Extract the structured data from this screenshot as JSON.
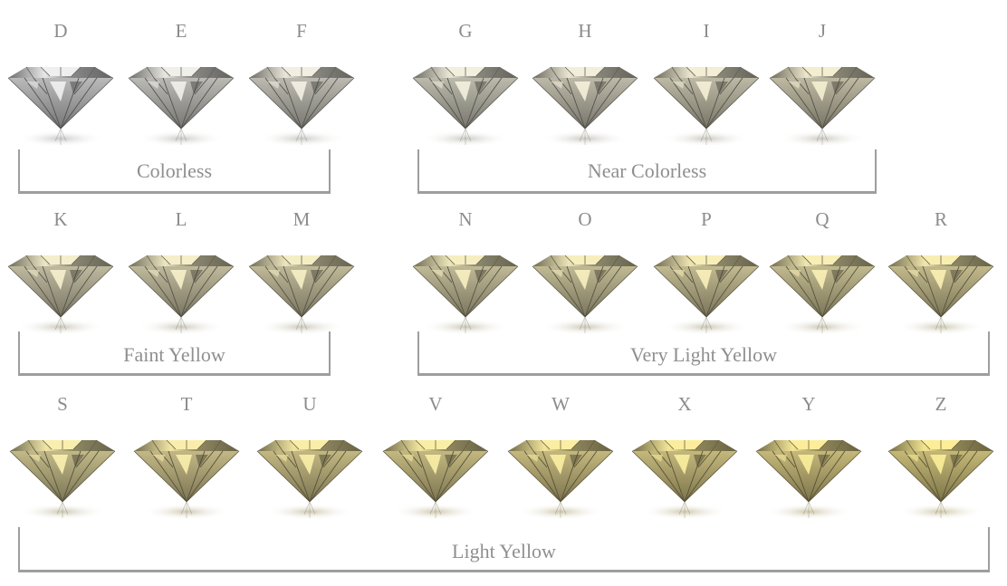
{
  "title": "",
  "rows": [
    {
      "groups": [
        {
          "label": "Colorless",
          "grades": [
            "D",
            "E",
            "F"
          ]
        },
        {
          "label": "Near Colorless",
          "grades": [
            "G",
            "H",
            "I",
            "J"
          ]
        }
      ]
    },
    {
      "groups": [
        {
          "label": "Faint Yellow",
          "grades": [
            "K",
            "L",
            "M"
          ]
        },
        {
          "label": "Very Light Yellow",
          "grades": [
            "N",
            "O",
            "P",
            "Q",
            "R"
          ]
        }
      ]
    },
    {
      "groups": [
        {
          "label": "Light Yellow",
          "grades": [
            "S",
            "T",
            "U",
            "V",
            "W",
            "X",
            "Y",
            "Z"
          ]
        }
      ]
    }
  ],
  "colors": {
    "letter_text": "#8c8c8c",
    "bracket_line": "#9e9e9e",
    "tint_start": "#c4c4c4",
    "tint_end": "#cfc27c"
  },
  "icons": {
    "gem": "round-brilliant-diamond-icon"
  }
}
